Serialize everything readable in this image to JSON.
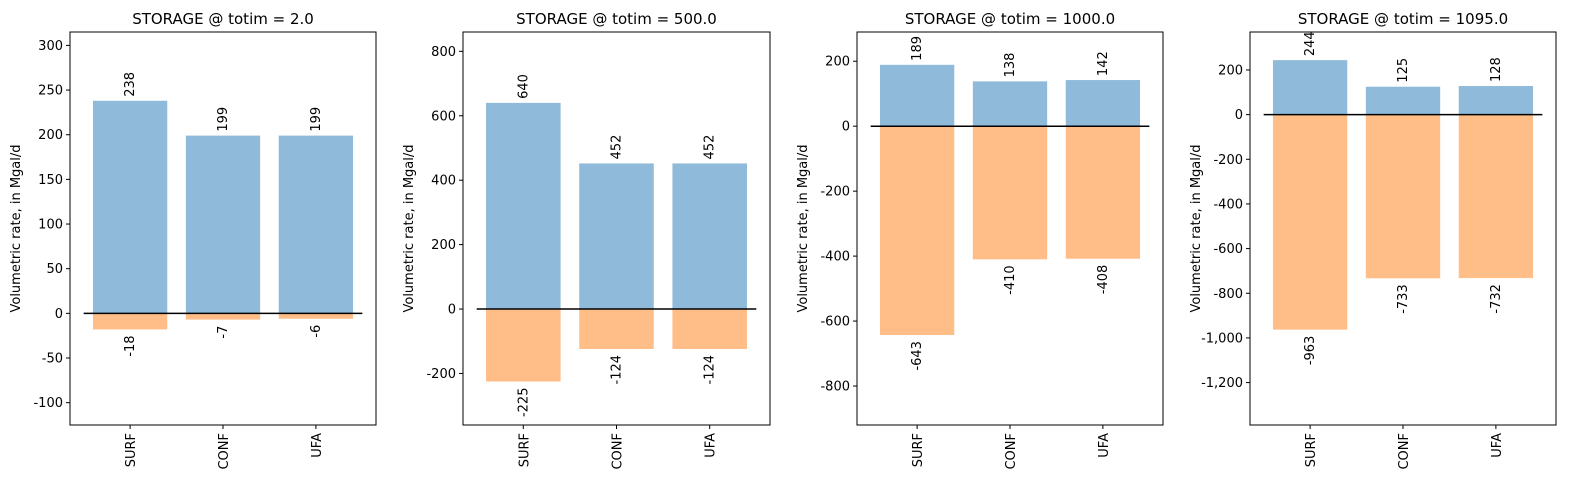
{
  "colors": {
    "positive": "#8fbad9",
    "negative": "#ffbd87",
    "zero_line": "#000000",
    "axes": "#000000"
  },
  "chart_data": [
    {
      "type": "bar",
      "title": "STORAGE @ totim = 2.0",
      "xlabel": "",
      "ylabel": "Volumetric rate, in Mgal/d",
      "categories": [
        "SURF",
        "CONF",
        "UFA"
      ],
      "series": [
        {
          "values": [
            238,
            199,
            199
          ],
          "labels": [
            "238",
            "199",
            "199"
          ]
        },
        {
          "values": [
            -18,
            -7,
            -6
          ],
          "labels": [
            "-18",
            "-7",
            "-6"
          ]
        }
      ],
      "ylim": [
        -125,
        315
      ],
      "yticks": [
        -100,
        -50,
        0,
        50,
        100,
        150,
        200,
        250,
        300
      ],
      "ytick_labels": [
        "-100",
        "-50",
        "0",
        "50",
        "100",
        "150",
        "200",
        "250",
        "300"
      ],
      "grid": false,
      "zero_line": true
    },
    {
      "type": "bar",
      "title": "STORAGE @ totim = 500.0",
      "xlabel": "",
      "ylabel": "Volumetric rate, in Mgal/d",
      "categories": [
        "SURF",
        "CONF",
        "UFA"
      ],
      "series": [
        {
          "values": [
            640,
            452,
            452
          ],
          "labels": [
            "640",
            "452",
            "452"
          ]
        },
        {
          "values": [
            -225,
            -124,
            -124
          ],
          "labels": [
            "-225",
            "-124",
            "-124"
          ]
        }
      ],
      "ylim": [
        -360,
        860
      ],
      "yticks": [
        -200,
        0,
        200,
        400,
        600,
        800
      ],
      "ytick_labels": [
        "-200",
        "0",
        "200",
        "400",
        "600",
        "800"
      ],
      "grid": false,
      "zero_line": true
    },
    {
      "type": "bar",
      "title": "STORAGE @ totim = 1000.0",
      "xlabel": "",
      "ylabel": "Volumetric rate, in Mgal/d",
      "categories": [
        "SURF",
        "CONF",
        "UFA"
      ],
      "series": [
        {
          "values": [
            189,
            138,
            142
          ],
          "labels": [
            "189",
            "138",
            "142"
          ]
        },
        {
          "values": [
            -643,
            -410,
            -408
          ],
          "labels": [
            "-643",
            "-410",
            "-408"
          ]
        }
      ],
      "ylim": [
        -920,
        290
      ],
      "yticks": [
        -800,
        -600,
        -400,
        -200,
        0,
        200
      ],
      "ytick_labels": [
        "-800",
        "-600",
        "-400",
        "-200",
        "0",
        "200"
      ],
      "grid": false,
      "zero_line": true
    },
    {
      "type": "bar",
      "title": "STORAGE @ totim = 1095.0",
      "xlabel": "",
      "ylabel": "Volumetric rate, in Mgal/d",
      "categories": [
        "SURF",
        "CONF",
        "UFA"
      ],
      "series": [
        {
          "values": [
            244,
            125,
            128
          ],
          "labels": [
            "244",
            "125",
            "128"
          ]
        },
        {
          "values": [
            -963,
            -733,
            -732
          ],
          "labels": [
            "-963",
            "-733",
            "-732"
          ]
        }
      ],
      "ylim": [
        -1390,
        370
      ],
      "yticks": [
        -1200,
        -1000,
        -800,
        -600,
        -400,
        -200,
        0,
        200
      ],
      "ytick_labels": [
        "-1,200",
        "-1,000",
        "-800",
        "-600",
        "-400",
        "-200",
        "0",
        "200"
      ],
      "grid": false,
      "zero_line": true
    }
  ]
}
